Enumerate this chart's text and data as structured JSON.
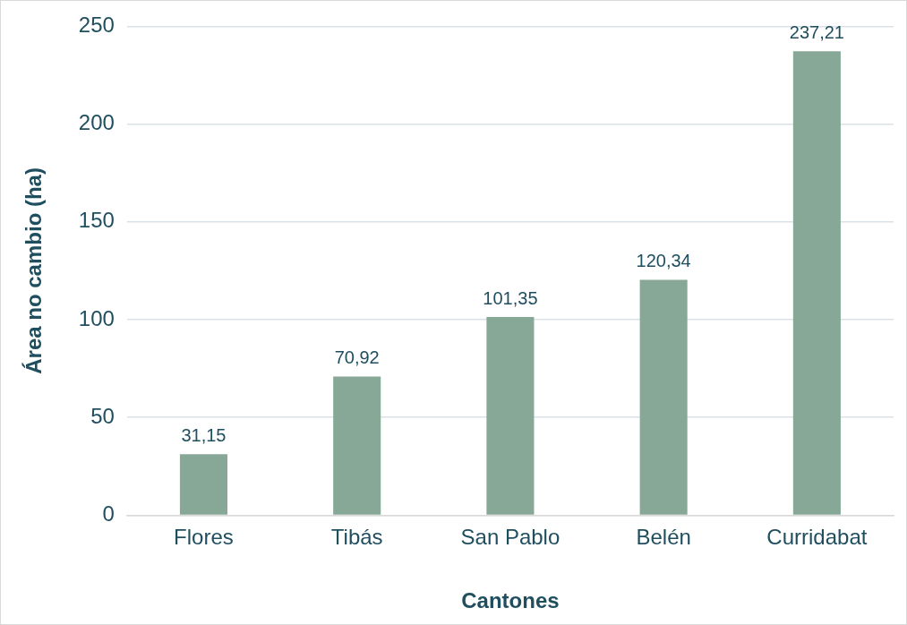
{
  "chart_data": {
    "type": "bar",
    "xlabel": "Cantones",
    "ylabel": "Área no cambio (ha)",
    "categories": [
      "Flores",
      "Tibás",
      "San Pablo",
      "Belén",
      "Curridabat"
    ],
    "values": [
      31.15,
      70.92,
      101.35,
      120.34,
      237.21
    ],
    "value_labels": [
      "31,15",
      "70,92",
      "101,35",
      "120,34",
      "237,21"
    ],
    "color": "#87a897",
    "ylim": [
      0,
      250
    ],
    "yticks": [
      0,
      50,
      100,
      150,
      200,
      250
    ],
    "grid": "y",
    "legend": false
  }
}
